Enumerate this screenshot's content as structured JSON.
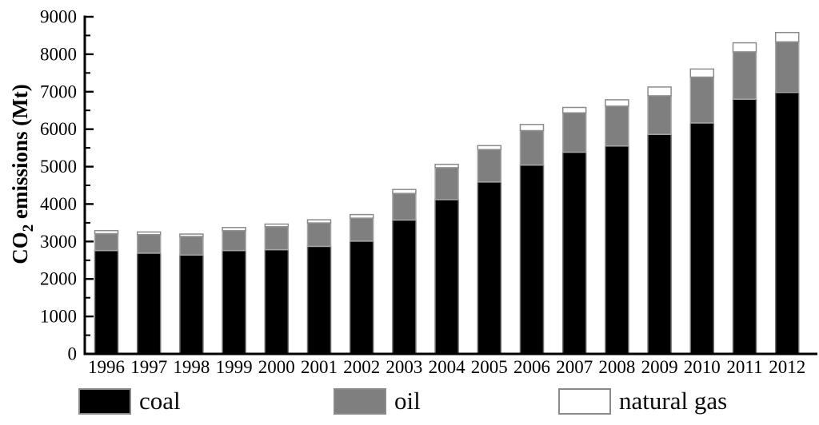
{
  "figure": {
    "background": "#ffffff",
    "axis_color": "#000000",
    "tick_label_color": "#000000"
  },
  "chart_data": {
    "type": "bar",
    "stacked": true,
    "title": "",
    "xlabel": "",
    "ylabel": "CO2 emissions (Mt)",
    "ylabel_parts": {
      "base": "CO",
      "sub": "2",
      "rest": " emissions (Mt)"
    },
    "ylim": [
      0,
      9000
    ],
    "y_major_ticks": [
      0,
      1000,
      2000,
      3000,
      4000,
      5000,
      6000,
      7000,
      8000,
      9000
    ],
    "y_minor_step": 500,
    "grid": false,
    "legend_position": "bottom",
    "categories": [
      "1996",
      "1997",
      "1998",
      "1999",
      "2000",
      "2001",
      "2002",
      "2003",
      "2004",
      "2005",
      "2006",
      "2007",
      "2008",
      "2009",
      "2010",
      "2011",
      "2012"
    ],
    "series": [
      {
        "name": "coal",
        "color": "#000000",
        "edge": "#6e6e6e",
        "values": [
          2760,
          2690,
          2640,
          2760,
          2780,
          2870,
          3010,
          3575,
          4120,
          4590,
          5040,
          5385,
          5550,
          5860,
          6165,
          6800,
          6980
        ]
      },
      {
        "name": "oil",
        "color": "#7f7f7f",
        "edge": "#a6a6a6",
        "values": [
          450,
          495,
          495,
          530,
          615,
          625,
          615,
          710,
          850,
          865,
          920,
          1050,
          1065,
          1030,
          1225,
          1265,
          1350
        ]
      },
      {
        "name": "natural gas",
        "color": "#ffffff",
        "edge": "#8c8c8c",
        "values": [
          80,
          70,
          65,
          85,
          70,
          85,
          95,
          105,
          90,
          105,
          165,
          145,
          170,
          235,
          215,
          240,
          250
        ]
      }
    ]
  }
}
